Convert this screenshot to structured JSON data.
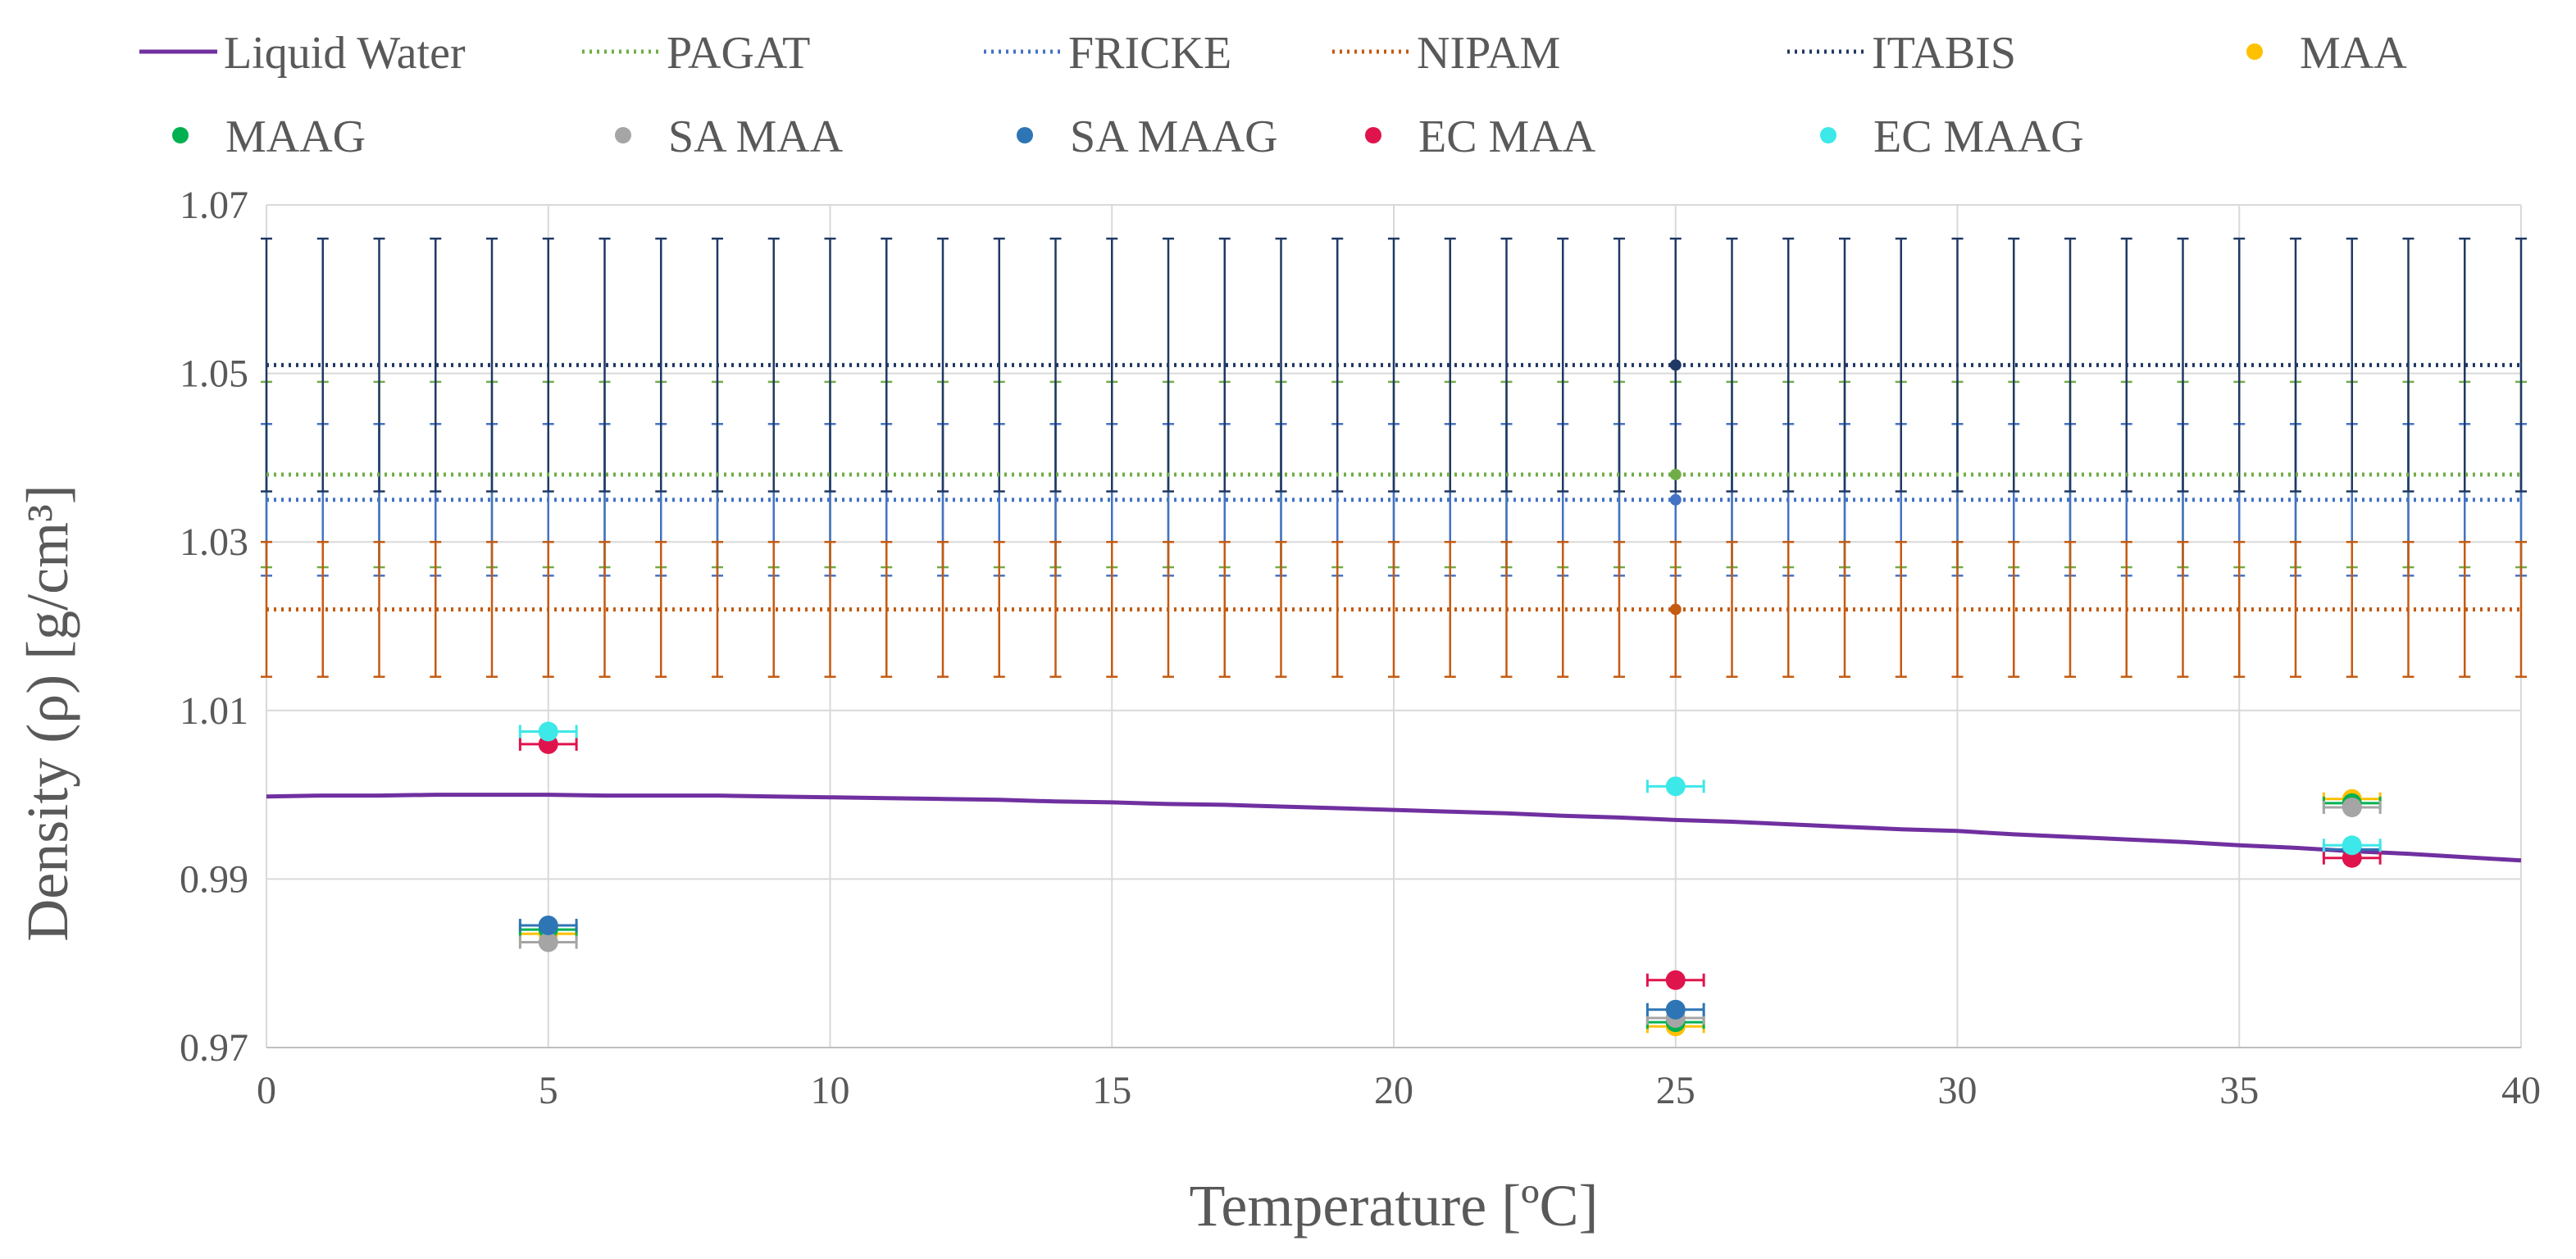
{
  "chart_data": {
    "type": "scatter",
    "xlabel": "Temperature [ºC]",
    "ylabel": "Density (ρ) [g/cm³]",
    "xlim": [
      0,
      40
    ],
    "ylim": [
      0.97,
      1.07
    ],
    "xticks": [
      0,
      5,
      10,
      15,
      20,
      25,
      30,
      35,
      40
    ],
    "yticks": [
      0.97,
      0.99,
      1.01,
      1.03,
      1.05,
      1.07
    ],
    "ytick_labels": [
      "0.97",
      "0.99",
      "1.01",
      "1.03",
      "1.05",
      "1.07"
    ],
    "grid": true,
    "legend_position": "top",
    "lines": [
      {
        "name": "Liquid Water",
        "style": "solid",
        "color": "#7030A0",
        "x": [
          0,
          1,
          2,
          3,
          4,
          5,
          6,
          7,
          8,
          9,
          10,
          11,
          12,
          13,
          14,
          15,
          16,
          17,
          18,
          19,
          20,
          21,
          22,
          23,
          24,
          25,
          26,
          27,
          28,
          29,
          30,
          31,
          32,
          33,
          34,
          35,
          36,
          37,
          38,
          39,
          40
        ],
        "y": [
          0.9998,
          0.9999,
          0.9999,
          1.0,
          1.0,
          1.0,
          0.9999,
          0.9999,
          0.9999,
          0.9998,
          0.9997,
          0.9996,
          0.9995,
          0.9994,
          0.9992,
          0.9991,
          0.9989,
          0.9988,
          0.9986,
          0.9984,
          0.9982,
          0.998,
          0.9978,
          0.9975,
          0.9973,
          0.997,
          0.9968,
          0.9965,
          0.9962,
          0.9959,
          0.9957,
          0.9953,
          0.995,
          0.9947,
          0.9944,
          0.994,
          0.9937,
          0.9933,
          0.993,
          0.9926,
          0.9922
        ]
      },
      {
        "name": "PAGAT",
        "style": "dotted",
        "color": "#70AD47",
        "y": 1.038,
        "err": 0.011
      },
      {
        "name": "FRICKE",
        "style": "dotted",
        "color": "#4472C4",
        "y": 1.035,
        "err": 0.009
      },
      {
        "name": "NIPAM",
        "style": "dotted",
        "color": "#C55A11",
        "y": 1.022,
        "err": 0.008
      },
      {
        "name": "ITABIS",
        "style": "dotted",
        "color": "#203864",
        "y": 1.051,
        "err": 0.015
      }
    ],
    "series": [
      {
        "name": "MAA",
        "color": "#FFC000",
        "x": [
          5,
          25,
          37
        ],
        "y": [
          0.9835,
          0.9725,
          0.9995
        ],
        "xerr": 0.5
      },
      {
        "name": "MAAG",
        "color": "#00B050",
        "x": [
          5,
          25,
          37
        ],
        "y": [
          0.984,
          0.973,
          0.999
        ],
        "xerr": 0.5
      },
      {
        "name": "SA MAA",
        "color": "#A5A5A5",
        "x": [
          5,
          25,
          37
        ],
        "y": [
          0.9825,
          0.9735,
          0.9985
        ],
        "xerr": 0.5
      },
      {
        "name": "SA MAAG",
        "color": "#2E75B6",
        "x": [
          5,
          25,
          37
        ],
        "y": [
          0.9845,
          0.9745,
          0.9935
        ],
        "xerr": 0.5
      },
      {
        "name": "EC MAA",
        "color": "#E0144C",
        "x": [
          5,
          25,
          37
        ],
        "y": [
          1.006,
          0.978,
          0.9925
        ],
        "xerr": 0.5
      },
      {
        "name": "EC MAAG",
        "color": "#3DE8E8",
        "x": [
          5,
          25,
          37
        ],
        "y": [
          1.0075,
          1.001,
          0.994
        ],
        "xerr": 0.5
      }
    ]
  }
}
